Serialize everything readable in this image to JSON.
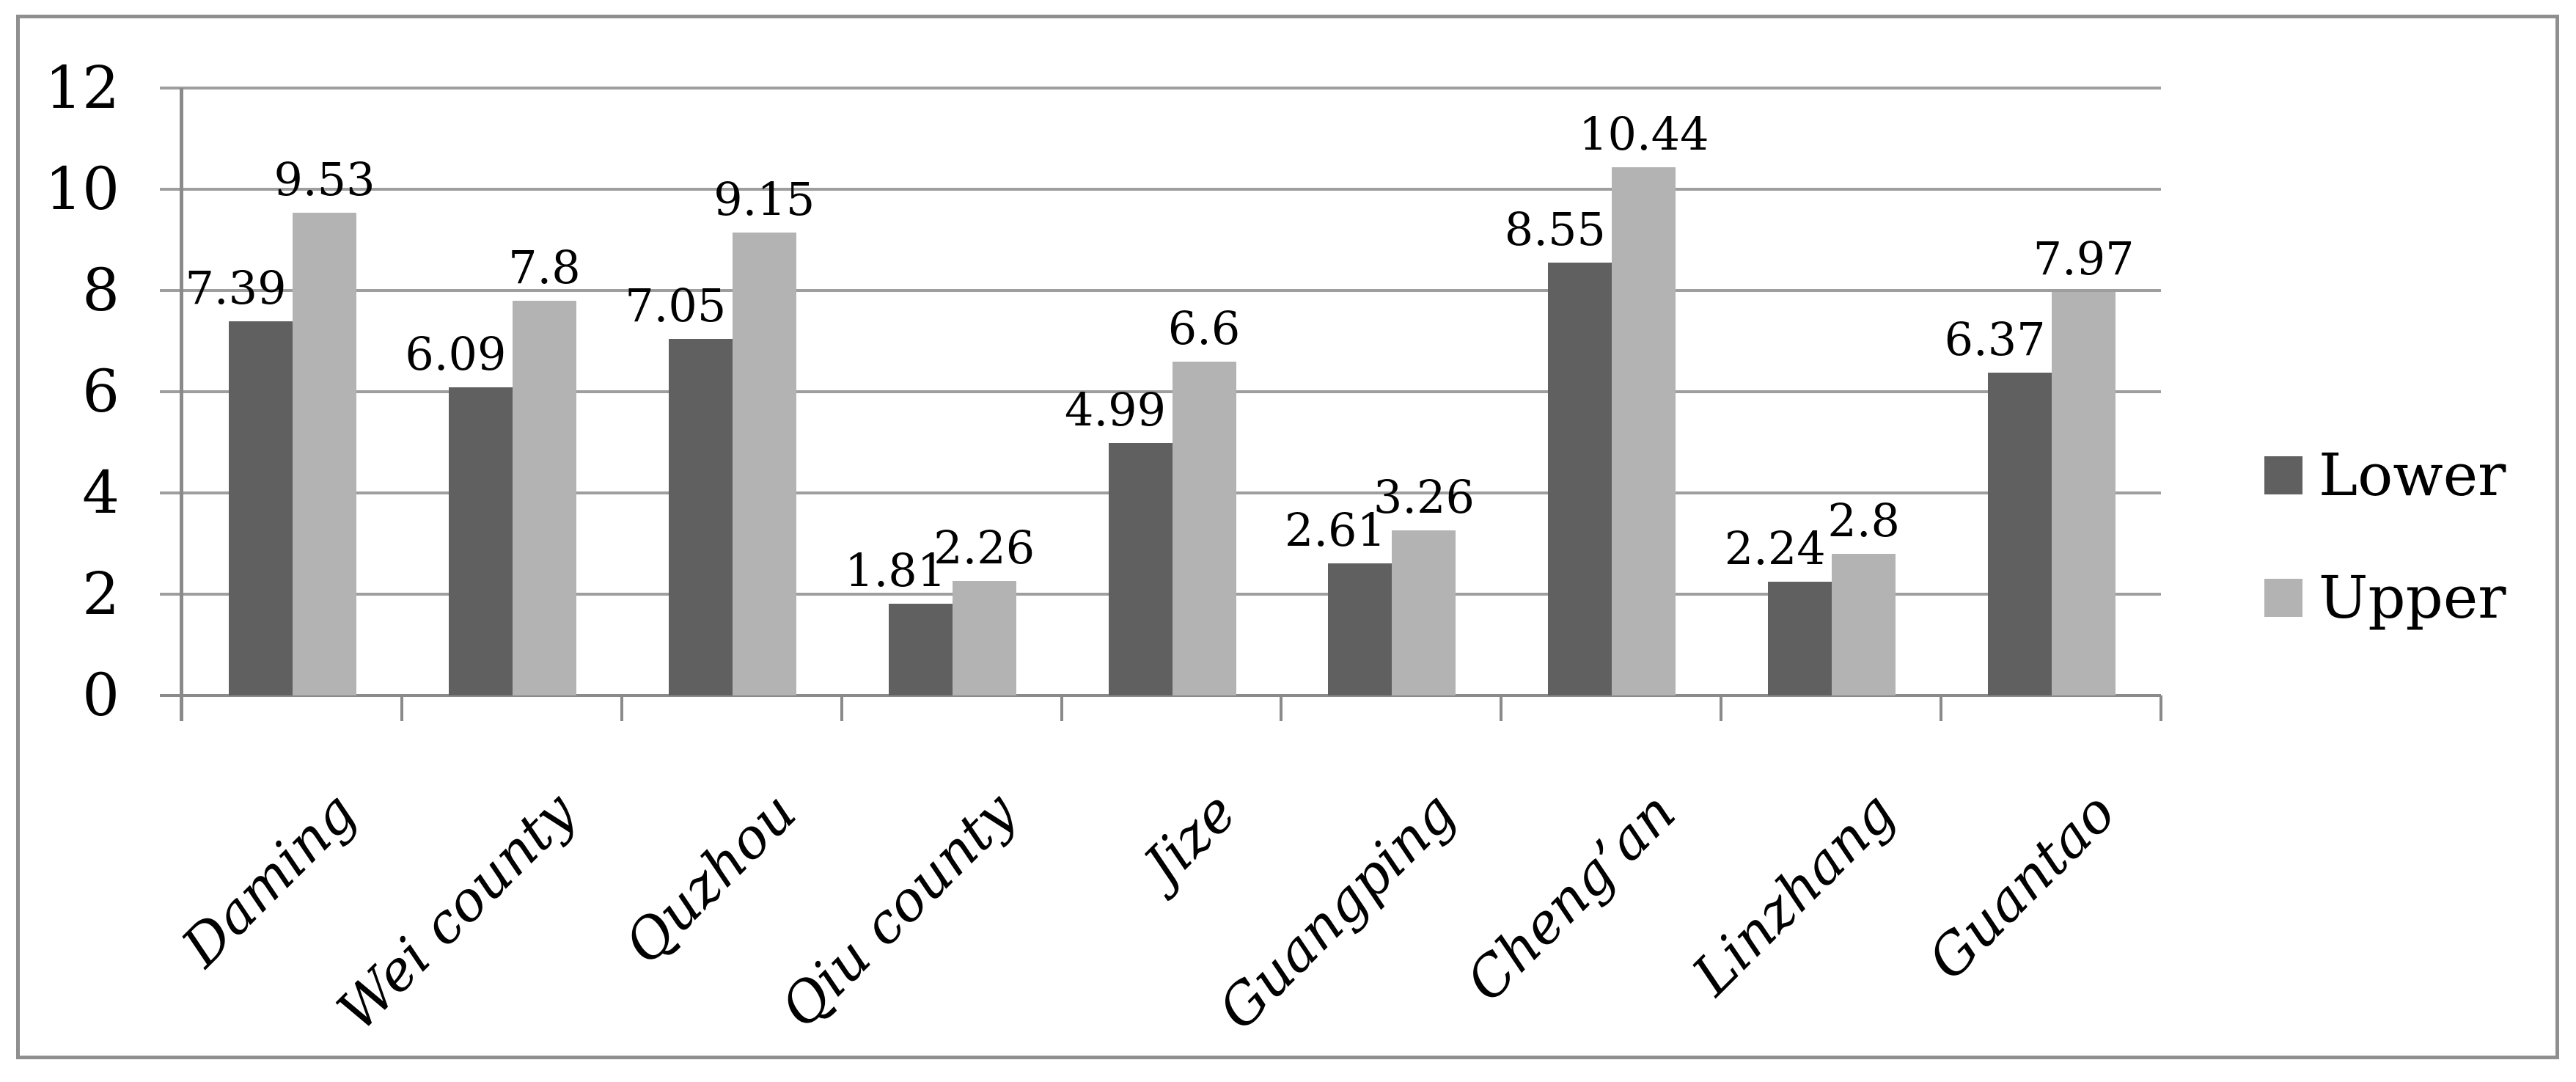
{
  "chart": {
    "background": "#ffffff",
    "frame_color": "#8f8f8f"
  },
  "chart_data": {
    "type": "bar",
    "title": "",
    "categories": [
      "Daming",
      "Wei county",
      "Quzhou",
      "Qiu county",
      "Jize",
      "Guangping",
      "Cheng’an",
      "Linzhang",
      "Guantao"
    ],
    "series": [
      {
        "name": "Lower",
        "color": "#606060",
        "values": [
          7.39,
          6.09,
          7.05,
          1.81,
          4.99,
          2.61,
          8.55,
          2.24,
          6.37
        ]
      },
      {
        "name": "Upper",
        "color": "#b3b3b3",
        "values": [
          9.53,
          7.8,
          9.15,
          2.26,
          6.6,
          3.26,
          10.44,
          2.8,
          7.97
        ]
      }
    ],
    "xlabel": "",
    "ylabel": "",
    "ylim": [
      0,
      12
    ],
    "yticks": [
      0,
      2,
      4,
      6,
      8,
      10,
      12
    ],
    "grid": true,
    "gridline_color": "#9e9e9e",
    "axis_color": "#8a8a8a",
    "data_labels": true,
    "label_color": "#000000",
    "legend_position": "right",
    "category_label_rotation_deg": -45
  }
}
